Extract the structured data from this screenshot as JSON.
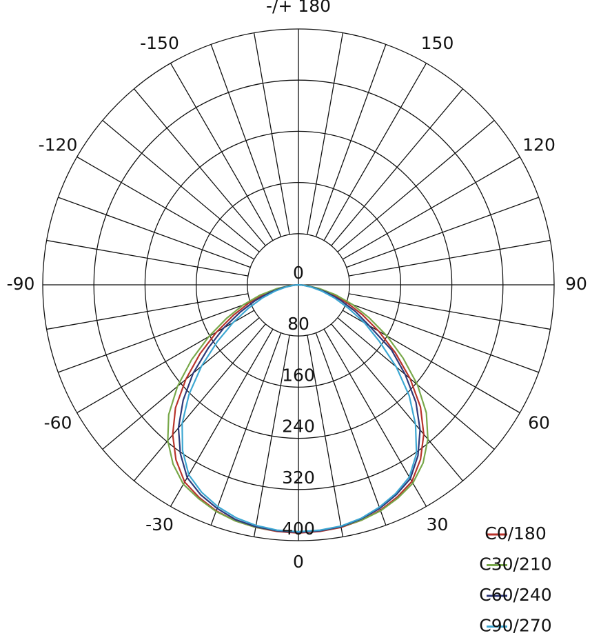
{
  "chart_data": {
    "type": "polar",
    "x": [
      -90,
      -85,
      -80,
      -75,
      -70,
      -65,
      -60,
      -55,
      -50,
      -45,
      -40,
      -35,
      -30,
      -25,
      -20,
      -15,
      -10,
      -5,
      0,
      5,
      10,
      15,
      20,
      25,
      30,
      35,
      40,
      45,
      50,
      55,
      60,
      65,
      70,
      75,
      80,
      85,
      90
    ],
    "series": [
      {
        "name": "C0/180",
        "color": "#b8332b",
        "values": [
          0,
          10,
          29,
          53,
          82,
          112,
          148,
          188,
          230,
          272,
          306,
          334,
          356,
          367,
          376,
          382,
          385,
          387,
          388,
          387,
          385,
          381,
          375,
          366,
          355,
          333,
          305,
          270,
          228,
          185,
          145,
          110,
          80,
          52,
          28,
          10,
          0
        ]
      },
      {
        "name": "C30/210",
        "color": "#78a84a",
        "values": [
          0,
          12,
          34,
          62,
          92,
          124,
          162,
          204,
          247,
          287,
          318,
          342,
          360,
          369,
          377,
          382,
          385,
          386,
          386,
          386,
          384,
          381,
          376,
          368,
          358,
          340,
          315,
          283,
          243,
          200,
          160,
          122,
          90,
          60,
          33,
          12,
          0
        ]
      },
      {
        "name": "C60/240",
        "color": "#2d3878",
        "values": [
          0,
          8,
          24,
          46,
          72,
          100,
          135,
          172,
          215,
          255,
          292,
          322,
          348,
          362,
          372,
          380,
          384,
          386,
          387,
          386,
          384,
          379,
          372,
          362,
          350,
          326,
          296,
          260,
          218,
          178,
          128,
          98,
          70,
          45,
          24,
          8,
          0
        ]
      },
      {
        "name": "C90/270",
        "color": "#3ca7d2",
        "values": [
          0,
          7,
          20,
          38,
          60,
          86,
          118,
          155,
          198,
          242,
          283,
          316,
          343,
          358,
          369,
          377,
          382,
          385,
          386,
          385,
          383,
          378,
          370,
          360,
          347,
          322,
          285,
          245,
          200,
          155,
          120,
          86,
          60,
          38,
          20,
          7,
          0
        ]
      }
    ],
    "rlim": [
      0,
      400
    ],
    "rticks": [
      0,
      80,
      160,
      240,
      320,
      400
    ],
    "thetaticks": [
      0,
      30,
      60,
      90,
      120,
      150,
      {
        "value": 180,
        "label": "-/+ 180"
      },
      -150,
      -120,
      -90,
      -60,
      -30
    ],
    "legend": "lower right"
  }
}
